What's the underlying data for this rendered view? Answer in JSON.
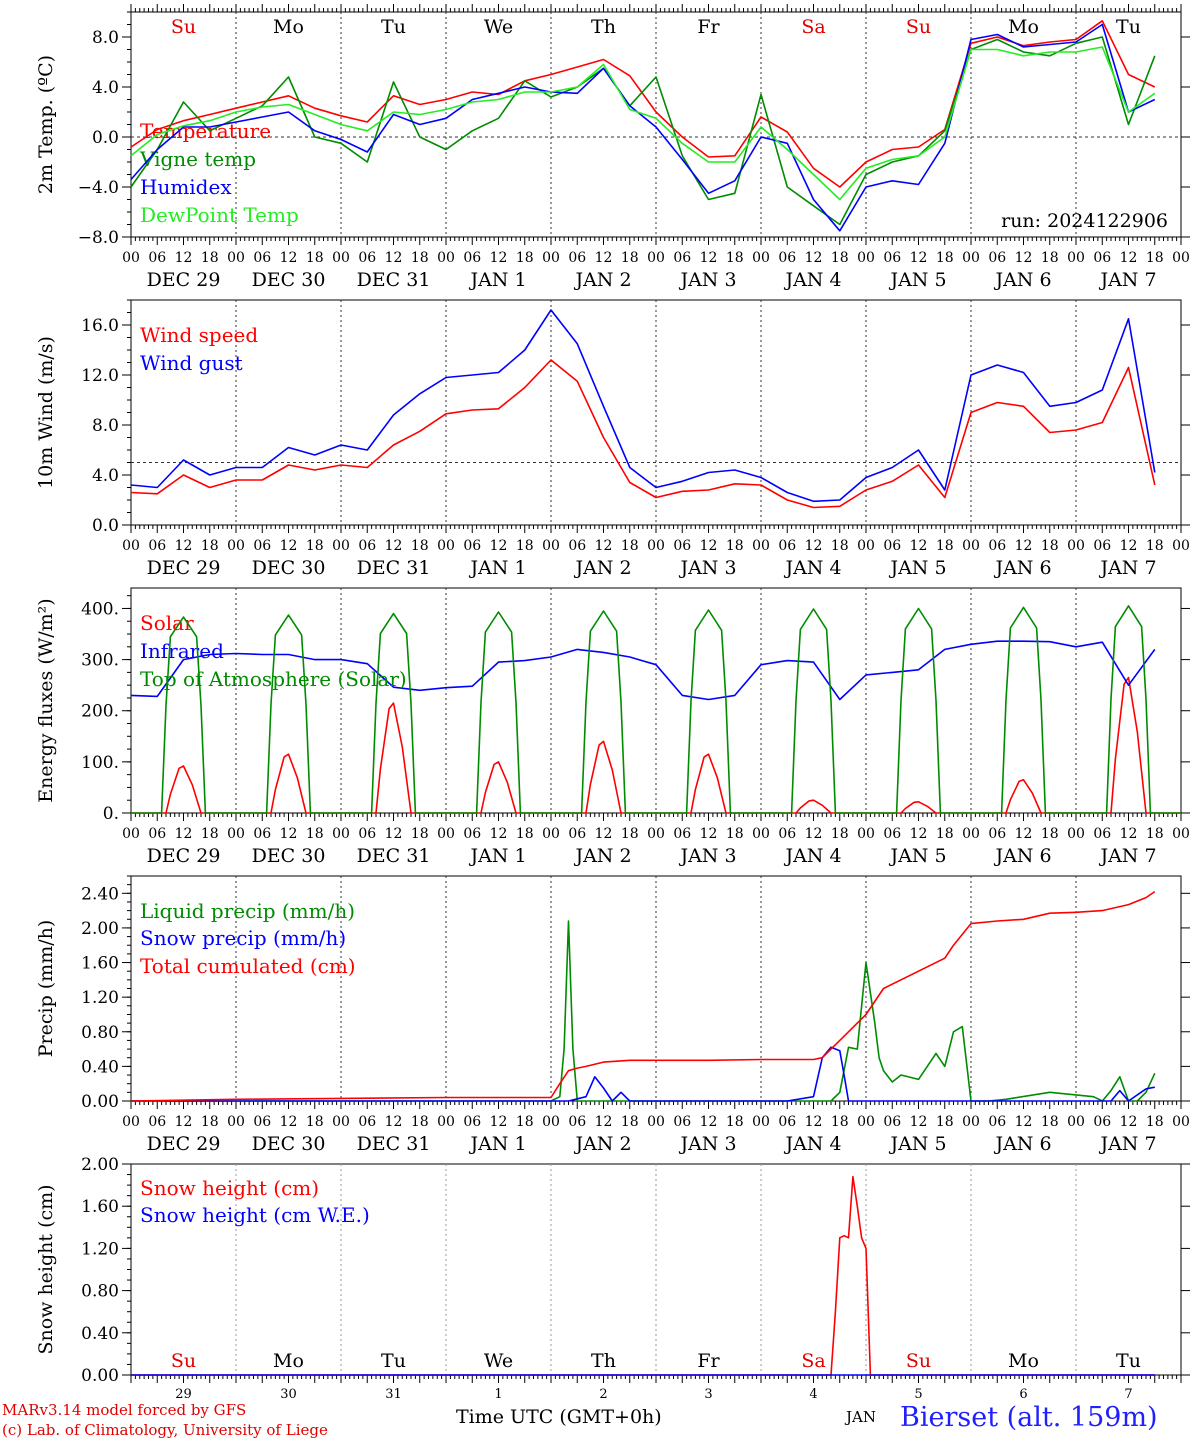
{
  "footer": {
    "credit_line1": "MARv3.14 model forced by GFS",
    "credit_line2": "(c) Lab. of Climatology, University of Liege",
    "xaxis_title": "Time UTC (GMT+0h)",
    "month_label": "JAN",
    "station": "Bierset (alt. 159m)"
  },
  "days": {
    "weekdays": [
      "Su",
      "Mo",
      "Tu",
      "We",
      "Th",
      "Fr",
      "Sa",
      "Su",
      "Mo",
      "Tu"
    ],
    "weekday_colors": [
      "#e00000",
      "#000000",
      "#000000",
      "#000000",
      "#000000",
      "#000000",
      "#e00000",
      "#e00000",
      "#000000",
      "#000000"
    ],
    "date_labels": [
      "DEC 29",
      "DEC 30",
      "DEC 31",
      "JAN 1",
      "JAN 2",
      "JAN 3",
      "JAN 4",
      "JAN 5",
      "JAN 6",
      "JAN 7"
    ],
    "day_numbers": [
      "29",
      "30",
      "31",
      "1",
      "2",
      "3",
      "4",
      "5",
      "6",
      "7"
    ],
    "hour_ticks": [
      "00",
      "06",
      "12",
      "18"
    ],
    "final_tick": "00"
  },
  "colors": {
    "red": "#ff0000",
    "green": "#008c00",
    "blue": "#0000ff",
    "lightgreen": "#22ee22"
  },
  "chart_data": [
    {
      "type": "line",
      "ylabel": "2m Temp. (ºC)",
      "ylim": [
        -8,
        10
      ],
      "yticks": [
        "−8.0",
        "−4.0",
        "0.0",
        "4.0",
        "8.0"
      ],
      "ytick_values": [
        -8,
        -4,
        0,
        4,
        8
      ],
      "reference_line": 0,
      "annotation": "run: 2024122906",
      "x_unit": "hours since Dec 29 00 UTC",
      "series": [
        {
          "name": "Temperature",
          "color": "#ff0000",
          "x": [
            0,
            6,
            12,
            18,
            24,
            30,
            36,
            42,
            48,
            54,
            60,
            66,
            72,
            78,
            84,
            90,
            96,
            102,
            108,
            114,
            120,
            126,
            132,
            138,
            144,
            150,
            156,
            162,
            168,
            174,
            180,
            186,
            192,
            198,
            204,
            210,
            216,
            222,
            228,
            234
          ],
          "y": [
            -0.8,
            0.6,
            1.3,
            1.8,
            2.3,
            2.8,
            3.3,
            2.3,
            1.7,
            1.2,
            3.3,
            2.6,
            3.0,
            3.6,
            3.4,
            4.5,
            5.0,
            5.6,
            6.2,
            4.9,
            2.0,
            0.0,
            -1.6,
            -1.5,
            1.6,
            0.4,
            -2.5,
            -4.0,
            -2.0,
            -1.0,
            -0.8,
            0.6,
            7.5,
            8.0,
            7.3,
            7.6,
            7.8,
            9.3,
            5.0,
            4.0
          ]
        },
        {
          "name": "Vigne temp",
          "color": "#008c00",
          "x": [
            0,
            6,
            12,
            18,
            24,
            30,
            36,
            42,
            48,
            54,
            60,
            66,
            72,
            78,
            84,
            90,
            96,
            102,
            108,
            114,
            120,
            126,
            132,
            138,
            144,
            150,
            156,
            162,
            168,
            174,
            180,
            186,
            192,
            198,
            204,
            210,
            216,
            222,
            228,
            234
          ],
          "y": [
            -4.0,
            -1.0,
            2.8,
            0.5,
            1.5,
            2.5,
            4.8,
            0.0,
            -0.5,
            -2.0,
            4.4,
            0.0,
            -1.0,
            0.5,
            1.5,
            4.5,
            3.2,
            4.0,
            5.5,
            2.5,
            4.8,
            -1.5,
            -5.0,
            -4.5,
            3.4,
            -4.0,
            -5.5,
            -7.0,
            -3.0,
            -2.0,
            -1.5,
            0.5,
            7.0,
            7.8,
            6.8,
            6.5,
            7.5,
            8.0,
            1.0,
            6.5
          ]
        },
        {
          "name": "Humidex",
          "color": "#0000ff",
          "x": [
            0,
            6,
            12,
            18,
            24,
            30,
            36,
            42,
            48,
            54,
            60,
            66,
            72,
            78,
            84,
            90,
            96,
            102,
            108,
            114,
            120,
            126,
            132,
            138,
            144,
            150,
            156,
            162,
            168,
            174,
            180,
            186,
            192,
            198,
            204,
            210,
            216,
            222,
            228,
            234
          ],
          "y": [
            -3.4,
            -1.0,
            0.8,
            0.8,
            1.2,
            1.6,
            2.0,
            0.5,
            -0.2,
            -1.2,
            1.8,
            1.0,
            1.5,
            3.0,
            3.5,
            4.0,
            3.6,
            3.5,
            5.5,
            2.5,
            0.8,
            -1.8,
            -4.5,
            -3.5,
            0.0,
            -0.5,
            -5.0,
            -7.5,
            -4.0,
            -3.5,
            -3.8,
            -0.5,
            7.8,
            8.2,
            7.2,
            7.4,
            7.6,
            9.0,
            2.0,
            3.0
          ]
        },
        {
          "name": "DewPoint Temp",
          "color": "#22ee22",
          "x": [
            0,
            6,
            12,
            18,
            24,
            30,
            36,
            42,
            48,
            54,
            60,
            66,
            72,
            78,
            84,
            90,
            96,
            102,
            108,
            114,
            120,
            126,
            132,
            138,
            144,
            150,
            156,
            162,
            168,
            174,
            180,
            186,
            192,
            198,
            204,
            210,
            216,
            222,
            228,
            234
          ],
          "y": [
            -1.5,
            0.2,
            0.9,
            1.3,
            2.0,
            2.4,
            2.6,
            1.8,
            1.0,
            0.5,
            2.0,
            1.8,
            2.2,
            2.8,
            3.0,
            3.6,
            3.6,
            4.0,
            5.8,
            2.2,
            1.5,
            -0.5,
            -2.0,
            -2.0,
            0.8,
            -1.0,
            -3.0,
            -5.0,
            -2.5,
            -1.8,
            -1.5,
            0.0,
            7.0,
            7.0,
            6.5,
            6.8,
            6.8,
            7.2,
            2.0,
            3.5
          ]
        }
      ]
    },
    {
      "type": "line",
      "ylabel": "10m Wind (m/s)",
      "ylim": [
        0,
        18
      ],
      "yticks": [
        "0.0",
        "4.0",
        "8.0",
        "12.0",
        "16.0"
      ],
      "ytick_values": [
        0,
        4,
        8,
        12,
        16
      ],
      "reference_line": 5,
      "x_unit": "hours since Dec 29 00 UTC",
      "series": [
        {
          "name": "Wind speed",
          "color": "#ff0000",
          "x": [
            0,
            6,
            12,
            18,
            24,
            30,
            36,
            42,
            48,
            54,
            60,
            66,
            72,
            78,
            84,
            90,
            96,
            102,
            108,
            114,
            120,
            126,
            132,
            138,
            144,
            150,
            156,
            162,
            168,
            174,
            180,
            186,
            192,
            198,
            204,
            210,
            216,
            222,
            228,
            234
          ],
          "y": [
            2.6,
            2.5,
            4.0,
            3.0,
            3.6,
            3.6,
            4.8,
            4.4,
            4.8,
            4.6,
            6.4,
            7.5,
            8.9,
            9.2,
            9.3,
            11.0,
            13.2,
            11.5,
            7.0,
            3.4,
            2.2,
            2.7,
            2.8,
            3.3,
            3.2,
            2.0,
            1.4,
            1.5,
            2.8,
            3.5,
            4.8,
            2.2,
            9.0,
            9.8,
            9.5,
            7.4,
            7.6,
            8.2,
            12.6,
            3.2
          ]
        },
        {
          "name": "Wind gust",
          "color": "#0000ff",
          "x": [
            0,
            6,
            12,
            18,
            24,
            30,
            36,
            42,
            48,
            54,
            60,
            66,
            72,
            78,
            84,
            90,
            96,
            102,
            108,
            114,
            120,
            126,
            132,
            138,
            144,
            150,
            156,
            162,
            168,
            174,
            180,
            186,
            192,
            198,
            204,
            210,
            216,
            222,
            228,
            234
          ],
          "y": [
            3.2,
            3.0,
            5.2,
            4.0,
            4.6,
            4.6,
            6.2,
            5.6,
            6.4,
            6.0,
            8.8,
            10.5,
            11.8,
            12.0,
            12.2,
            14.0,
            17.2,
            14.5,
            9.5,
            4.6,
            3.0,
            3.5,
            4.2,
            4.4,
            3.8,
            2.6,
            1.9,
            2.0,
            3.8,
            4.6,
            6.0,
            2.8,
            12.0,
            12.8,
            12.2,
            9.5,
            9.8,
            10.8,
            16.5,
            4.2
          ]
        }
      ]
    },
    {
      "type": "line",
      "ylabel": "Energy fluxes (W/m²)",
      "ylim": [
        0,
        440
      ],
      "yticks": [
        "0.",
        "100.",
        "200.",
        "300.",
        "400."
      ],
      "ytick_values": [
        0,
        100,
        200,
        300,
        400
      ],
      "x_unit": "hours since Dec 29 00 UTC",
      "series": [
        {
          "name": "Solar",
          "color": "#ff0000",
          "kind": "daily_peaks",
          "daily_peak_values": [
            92,
            115,
            215,
            100,
            140,
            115,
            25,
            22,
            65,
            265
          ]
        },
        {
          "name": "Infrared",
          "color": "#0000ff",
          "x": [
            0,
            6,
            12,
            18,
            24,
            30,
            36,
            42,
            48,
            54,
            60,
            66,
            72,
            78,
            84,
            90,
            96,
            102,
            108,
            114,
            120,
            126,
            132,
            138,
            144,
            150,
            156,
            162,
            168,
            174,
            180,
            186,
            192,
            198,
            204,
            210,
            216,
            222,
            228,
            234
          ],
          "y": [
            230,
            228,
            300,
            310,
            312,
            310,
            310,
            300,
            300,
            292,
            246,
            240,
            245,
            248,
            295,
            298,
            305,
            320,
            314,
            305,
            290,
            230,
            222,
            230,
            290,
            298,
            295,
            222,
            270,
            275,
            280,
            320,
            330,
            336,
            336,
            335,
            325,
            334,
            250,
            320
          ]
        },
        {
          "name": "Top of Atmosphere (Solar)",
          "color": "#008c00",
          "kind": "daily_peaks",
          "daily_peak_values": [
            383,
            387,
            390,
            393,
            395,
            397,
            399,
            400,
            402,
            405
          ]
        }
      ]
    },
    {
      "type": "line",
      "ylabel": "Precip (mm/h)",
      "ylim": [
        0,
        2.6
      ],
      "yticks": [
        "0.00",
        "0.40",
        "0.80",
        "1.20",
        "1.60",
        "2.00",
        "2.40"
      ],
      "ytick_values": [
        0,
        0.4,
        0.8,
        1.2,
        1.6,
        2.0,
        2.4
      ],
      "x_unit": "hours since Dec 29 00 UTC",
      "series": [
        {
          "name": "Liquid precip (mm/h)",
          "color": "#008c00",
          "x": [
            0,
            96,
            98,
            99,
            100,
            101,
            102,
            104,
            120,
            160,
            162,
            164,
            166,
            168,
            170,
            171,
            172,
            174,
            176,
            180,
            184,
            186,
            188,
            190,
            192,
            196,
            200,
            210,
            220,
            222,
            224,
            226,
            228,
            230,
            232,
            234
          ],
          "y": [
            0,
            0,
            0.05,
            0.6,
            2.08,
            0.6,
            0.0,
            0.0,
            0.0,
            0.0,
            0.1,
            0.62,
            0.6,
            1.6,
            0.9,
            0.5,
            0.35,
            0.22,
            0.3,
            0.25,
            0.55,
            0.4,
            0.8,
            0.86,
            0.0,
            0.0,
            0.02,
            0.1,
            0.05,
            0.0,
            0.12,
            0.28,
            0.0,
            0.0,
            0.1,
            0.32
          ]
        },
        {
          "name": "Snow precip (mm/h)",
          "color": "#0000ff",
          "x": [
            0,
            100,
            104,
            106,
            108,
            110,
            112,
            114,
            150,
            156,
            158,
            160,
            162,
            163,
            164,
            166,
            200,
            224,
            226,
            228,
            232,
            234
          ],
          "y": [
            0,
            0,
            0.05,
            0.28,
            0.15,
            0.0,
            0.1,
            0.0,
            0.0,
            0.05,
            0.5,
            0.62,
            0.58,
            0.3,
            0.0,
            0.0,
            0.0,
            0.0,
            0.12,
            0.0,
            0.14,
            0.16
          ]
        },
        {
          "name": "Total cumulated (cm)",
          "color": "#ff0000",
          "x": [
            0,
            24,
            48,
            72,
            96,
            98,
            100,
            102,
            104,
            108,
            114,
            120,
            132,
            144,
            150,
            156,
            158,
            160,
            162,
            164,
            166,
            168,
            172,
            180,
            186,
            188,
            192,
            198,
            204,
            210,
            216,
            222,
            228,
            232,
            234
          ],
          "y": [
            0.0,
            0.02,
            0.03,
            0.04,
            0.04,
            0.2,
            0.35,
            0.38,
            0.4,
            0.45,
            0.47,
            0.47,
            0.47,
            0.48,
            0.48,
            0.48,
            0.5,
            0.6,
            0.7,
            0.8,
            0.9,
            1.0,
            1.3,
            1.5,
            1.65,
            1.8,
            2.05,
            2.08,
            2.1,
            2.17,
            2.18,
            2.2,
            2.27,
            2.35,
            2.42
          ]
        }
      ]
    },
    {
      "type": "line",
      "ylabel": "Snow height (cm)",
      "ylim": [
        0,
        2.0
      ],
      "yticks": [
        "0.00",
        "0.40",
        "0.80",
        "1.20",
        "1.60",
        "2.00"
      ],
      "ytick_values": [
        0,
        0.4,
        0.8,
        1.2,
        1.6,
        2.0
      ],
      "x_unit": "hours since Dec 29 00 UTC",
      "series": [
        {
          "name": "Snow height (cm)",
          "color": "#ff0000",
          "x": [
            0,
            160,
            161,
            162,
            163,
            164,
            165,
            166,
            167,
            168,
            169,
            170,
            200,
            234
          ],
          "y": [
            0,
            0,
            0.6,
            1.3,
            1.32,
            1.3,
            1.88,
            1.6,
            1.3,
            1.2,
            0.0,
            0.0,
            0.0,
            0.0
          ]
        },
        {
          "name": "Snow height (cm W.E.)",
          "color": "#0000ff",
          "x": [
            0,
            234
          ],
          "y": [
            0,
            0
          ]
        }
      ]
    }
  ]
}
